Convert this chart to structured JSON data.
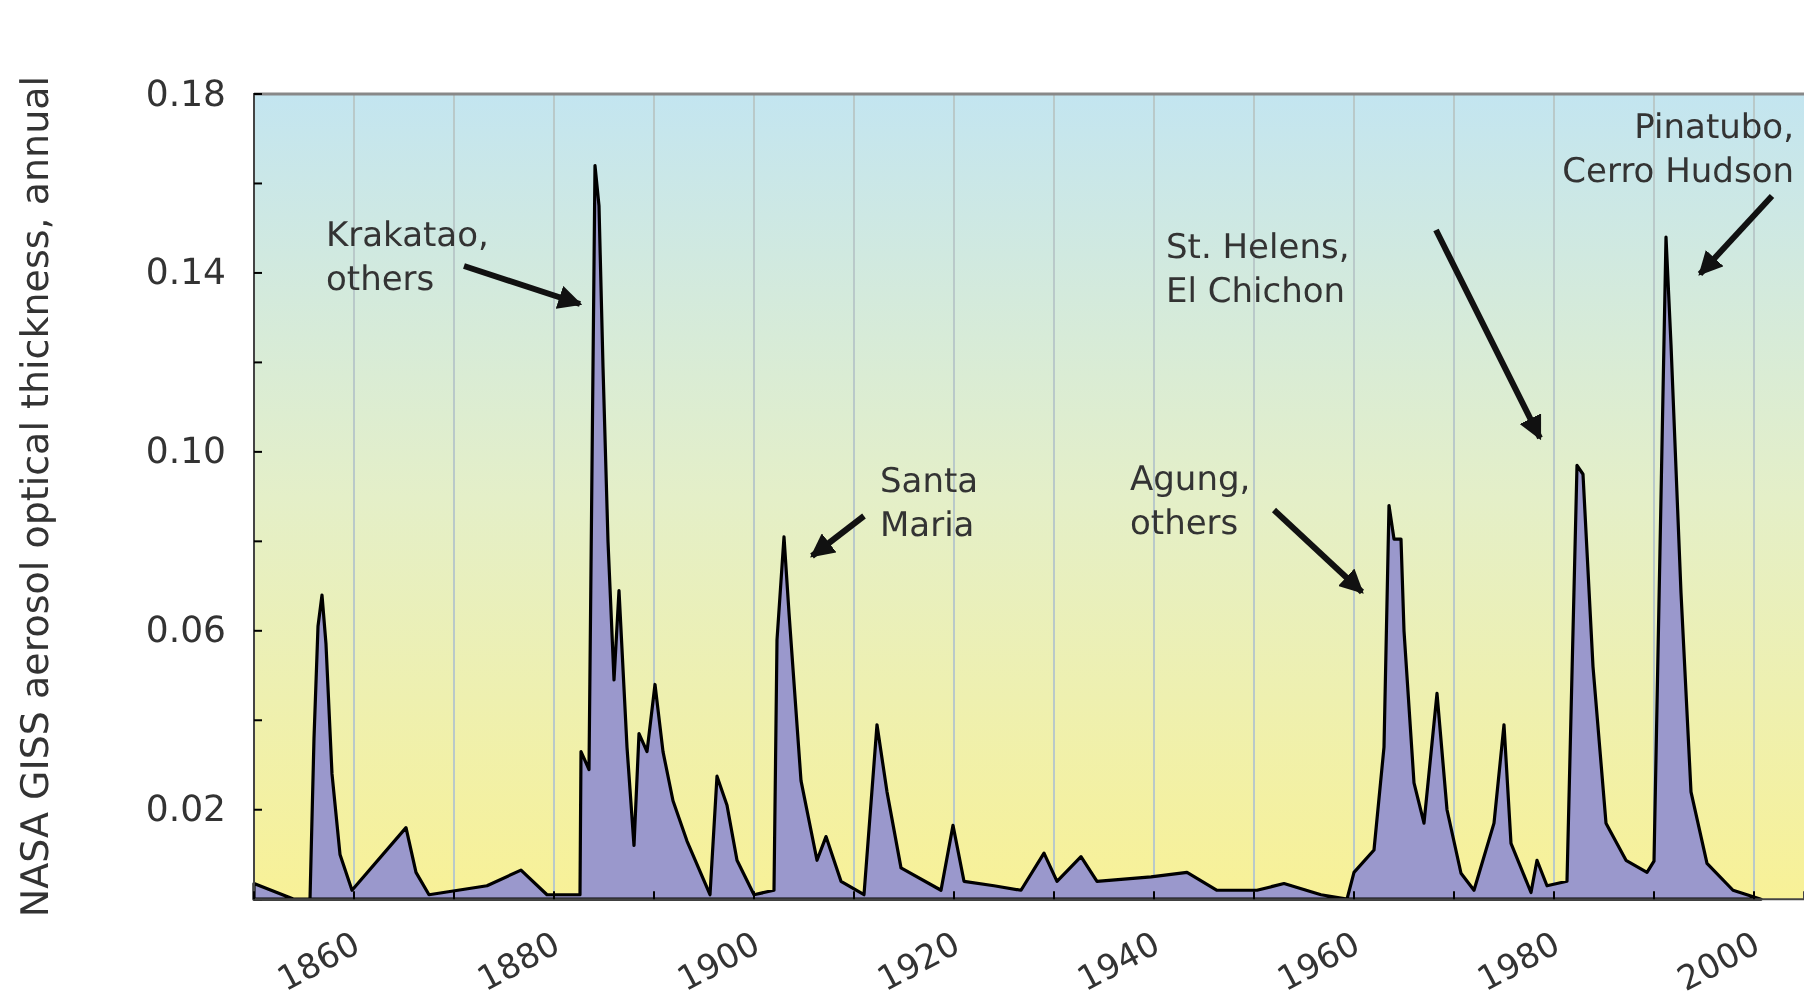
{
  "chart_data": {
    "type": "area",
    "ylabel": "NASA GISS aerosol optical thickness, annual",
    "xlim": [
      1850,
      2005
    ],
    "ylim": [
      0,
      0.18
    ],
    "xticks": [
      {
        "value": 1850,
        "label": null
      },
      1860,
      {
        "value": 1870,
        "label": null
      },
      1880,
      {
        "value": 1890,
        "label": null
      },
      1900,
      {
        "value": 1910,
        "label": null
      },
      1920,
      {
        "value": 1930,
        "label": null
      },
      1940,
      {
        "value": 1950,
        "label": null
      },
      1960,
      {
        "value": 1970,
        "label": null
      },
      1980,
      {
        "value": 1990,
        "label": null
      },
      2000
    ],
    "yticks": [
      {
        "value": 0,
        "label": null
      },
      0.02,
      {
        "value": 0.04,
        "label": null
      },
      0.06,
      {
        "value": 0.08,
        "label": null
      },
      {
        "value": 0.1,
        "label": "0.10"
      },
      {
        "value": 0.12,
        "label": null
      },
      0.14,
      {
        "value": 0.16,
        "label": null
      },
      0.18
    ],
    "grid": "x",
    "series": [
      {
        "color": "#9a98cc",
        "x": [
          1850,
          1854,
          1855.6,
          1855.7,
          1856,
          1856.4,
          1856.8,
          1857.2,
          1857.8,
          1858.6,
          1859.8,
          1865.2,
          1866.2,
          1867.5,
          1873.3,
          1876.7,
          1879.3,
          1882.6,
          1882.7,
          1883.5,
          1884.1,
          1884.5,
          1884.9,
          1885.4,
          1886,
          1886.5,
          1887.3,
          1888,
          1888.5,
          1889.3,
          1890.1,
          1890.9,
          1891.9,
          1893.3,
          1895.6,
          1896.3,
          1897.3,
          1898.3,
          1900,
          1902,
          1902.3,
          1903,
          1903.5,
          1904.7,
          1906.3,
          1907.2,
          1908.7,
          1911,
          1912.3,
          1913.3,
          1914.7,
          1918.7,
          1919.9,
          1921,
          1924,
          1926.7,
          1929,
          1930.3,
          1932.7,
          1934.3,
          1939.7,
          1943.3,
          1946.3,
          1950.3,
          1953,
          1956.7,
          1959.3,
          1960,
          1962,
          1963,
          1963.5,
          1964,
          1964.7,
          1965,
          1966,
          1967,
          1968.3,
          1969.3,
          1970.7,
          1972,
          1974,
          1975,
          1975.7,
          1977.7,
          1978.3,
          1979.3,
          1981.3,
          1982.3,
          1982.9,
          1983.9,
          1985.2,
          1987.2,
          1989.3,
          1990,
          1991.2,
          1991.7,
          1992.7,
          1993.7,
          1995.3,
          1997.9,
          2000.7
        ],
        "values": [
          0.0035,
          0,
          0,
          0.009,
          0.036,
          0.061,
          0.068,
          0.057,
          0.028,
          0.01,
          0.002,
          0.016,
          0.006,
          0.001,
          0.003,
          0.0065,
          0.001,
          0.001,
          0.033,
          0.029,
          0.164,
          0.155,
          0.119,
          0.08,
          0.049,
          0.069,
          0.034,
          0.012,
          0.037,
          0.033,
          0.048,
          0.033,
          0.022,
          0.013,
          0.001,
          0.0275,
          0.021,
          0.0087,
          0.001,
          0.002,
          0.058,
          0.081,
          0.064,
          0.0265,
          0.0087,
          0.014,
          0.004,
          0.001,
          0.039,
          0.024,
          0.007,
          0.002,
          0.0165,
          0.004,
          0.003,
          0.002,
          0.0103,
          0.004,
          0.0095,
          0.004,
          0.005,
          0.006,
          0.002,
          0.002,
          0.0035,
          0.001,
          0,
          0.006,
          0.011,
          0.034,
          0.088,
          0.0805,
          0.0805,
          0.06,
          0.026,
          0.017,
          0.046,
          0.02,
          0.0058,
          0.002,
          0.017,
          0.039,
          0.0125,
          0.0015,
          0.0087,
          0.003,
          0.004,
          0.097,
          0.095,
          0.052,
          0.017,
          0.0087,
          0.006,
          0.0085,
          0.148,
          0.124,
          0.0685,
          0.024,
          0.008,
          0.002,
          0
        ]
      }
    ],
    "annotations": [
      "Krakatao,\nothers",
      "Santa\nMaria",
      "Agung,\nothers",
      "St. Helens,\nEl Chichon",
      "Pinatubo,\nCerro Hudson"
    ]
  }
}
